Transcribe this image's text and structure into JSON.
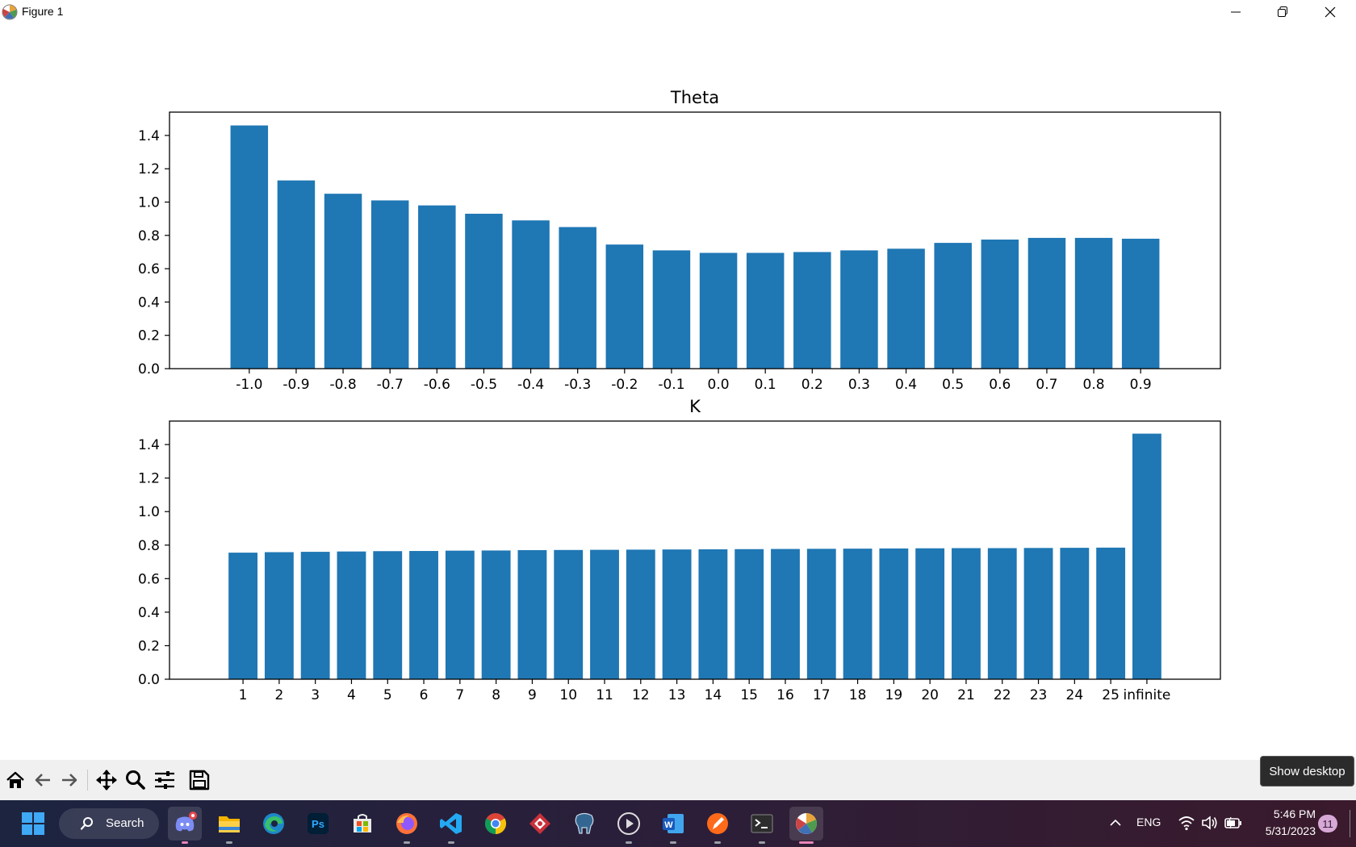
{
  "window": {
    "title": "Figure 1",
    "controls": {
      "minimize": "minimize",
      "restore": "restore",
      "close": "close"
    }
  },
  "chart_data": [
    {
      "type": "bar",
      "title": "Theta",
      "xlabel": "",
      "ylabel": "",
      "categories": [
        "-1.0",
        "-0.9",
        "-0.8",
        "-0.7",
        "-0.6",
        "-0.5",
        "-0.4",
        "-0.3",
        "-0.2",
        "-0.1",
        "0.0",
        "0.1",
        "0.2",
        "0.3",
        "0.4",
        "0.5",
        "0.6",
        "0.7",
        "0.8",
        "0.9"
      ],
      "values": [
        1.46,
        1.13,
        1.05,
        1.01,
        0.98,
        0.93,
        0.89,
        0.85,
        0.745,
        0.71,
        0.695,
        0.695,
        0.7,
        0.71,
        0.72,
        0.755,
        0.775,
        0.785,
        0.785,
        0.78
      ],
      "ylim": [
        0,
        1.54
      ],
      "yticks": [
        "0.0",
        "0.2",
        "0.4",
        "0.6",
        "0.8",
        "1.0",
        "1.2",
        "1.4"
      ],
      "color": "#1f77b4",
      "grid": false,
      "legend": "none"
    },
    {
      "type": "bar",
      "title": "K",
      "xlabel": "",
      "ylabel": "",
      "categories": [
        "1",
        "2",
        "3",
        "4",
        "5",
        "6",
        "7",
        "8",
        "9",
        "10",
        "11",
        "12",
        "13",
        "14",
        "15",
        "16",
        "17",
        "18",
        "19",
        "20",
        "21",
        "22",
        "23",
        "24",
        "25",
        "infinite"
      ],
      "values": [
        0.755,
        0.758,
        0.76,
        0.762,
        0.764,
        0.765,
        0.767,
        0.768,
        0.77,
        0.771,
        0.772,
        0.773,
        0.774,
        0.775,
        0.776,
        0.777,
        0.778,
        0.779,
        0.78,
        0.781,
        0.782,
        0.782,
        0.783,
        0.784,
        0.785,
        1.465
      ],
      "ylim": [
        0,
        1.54
      ],
      "yticks": [
        "0.0",
        "0.2",
        "0.4",
        "0.6",
        "0.8",
        "1.0",
        "1.2",
        "1.4"
      ],
      "color": "#1f77b4",
      "grid": false,
      "legend": "none"
    }
  ],
  "toolbar": {
    "buttons": [
      "home-icon",
      "back-arrow-icon",
      "forward-arrow-icon",
      "pan-move-icon",
      "zoom-magnifier-icon",
      "configure-subplots-icon",
      "save-floppy-icon"
    ]
  },
  "tooltip": {
    "text": "Show desktop"
  },
  "taskbar": {
    "search_label": "Search",
    "apps": [
      "discord",
      "file-explorer",
      "edge",
      "photoshop",
      "microsoft-store",
      "firefox",
      "vs-code",
      "chrome",
      "rhino",
      "pgadmin",
      "media-player",
      "word",
      "sketchbook",
      "terminal",
      "matplotlib-figure"
    ],
    "tray": {
      "language": "ENG",
      "time": "5:46 PM",
      "date": "5/31/2023",
      "notification_count": "11"
    }
  },
  "colors": {
    "bar": "#1f77b4",
    "toolbar_bg": "#f0f0f0",
    "taskbar_accent": "#e985b8"
  }
}
